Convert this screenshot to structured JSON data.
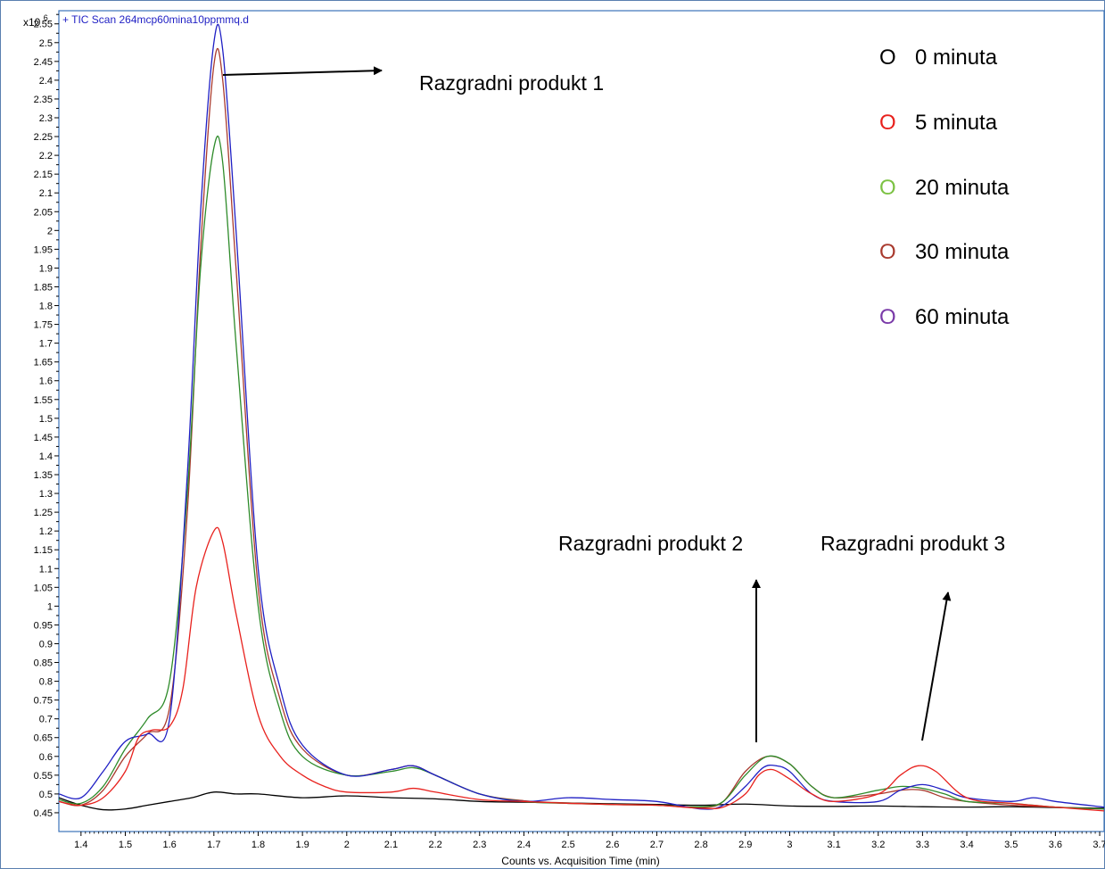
{
  "chart_data": {
    "type": "line",
    "title": "+ TIC Scan 264mcp60mina10ppmmq.d",
    "y_multiplier": "x10",
    "y_exponent": "6",
    "xlabel": "Counts vs. Acquisition Time (min)",
    "xlim": [
      1.35,
      3.71
    ],
    "ylim": [
      0.4,
      2.585
    ],
    "x_ticks": [
      "1.4",
      "1.5",
      "1.6",
      "1.7",
      "1.8",
      "1.9",
      "2",
      "2.1",
      "2.2",
      "2.3",
      "2.4",
      "2.5",
      "2.6",
      "2.7",
      "2.8",
      "2.9",
      "3",
      "3.1",
      "3.2",
      "3.3",
      "3.4",
      "3.5",
      "3.6",
      "3.7"
    ],
    "y_ticks": [
      "0.45",
      "0.5",
      "0.55",
      "0.6",
      "0.65",
      "0.7",
      "0.75",
      "0.8",
      "0.85",
      "0.9",
      "0.95",
      "1",
      "1.05",
      "1.1",
      "1.15",
      "1.2",
      "1.25",
      "1.3",
      "1.35",
      "1.4",
      "1.45",
      "1.5",
      "1.55",
      "1.6",
      "1.65",
      "1.7",
      "1.75",
      "1.8",
      "1.85",
      "1.9",
      "1.95",
      "2",
      "2.05",
      "2.1",
      "2.15",
      "2.2",
      "2.25",
      "2.3",
      "2.35",
      "2.4",
      "2.45",
      "2.5",
      "2.55"
    ],
    "series": [
      {
        "name": "0 minuta",
        "color": "#000000",
        "x": [
          1.35,
          1.4,
          1.45,
          1.5,
          1.55,
          1.6,
          1.65,
          1.7,
          1.75,
          1.8,
          1.9,
          2.0,
          2.1,
          2.2,
          2.3,
          2.4,
          2.5,
          2.6,
          2.7,
          2.8,
          2.9,
          3.0,
          3.1,
          3.2,
          3.3,
          3.4,
          3.5,
          3.6,
          3.71
        ],
        "y": [
          0.49,
          0.47,
          0.458,
          0.46,
          0.47,
          0.48,
          0.49,
          0.505,
          0.5,
          0.5,
          0.49,
          0.495,
          0.49,
          0.487,
          0.48,
          0.478,
          0.476,
          0.474,
          0.472,
          0.47,
          0.473,
          0.468,
          0.467,
          0.468,
          0.466,
          0.465,
          0.466,
          0.464,
          0.462
        ]
      },
      {
        "name": "5 minuta",
        "color": "#e8211d",
        "x": [
          1.35,
          1.4,
          1.45,
          1.5,
          1.53,
          1.56,
          1.6,
          1.63,
          1.66,
          1.7,
          1.72,
          1.75,
          1.8,
          1.85,
          1.9,
          1.95,
          2.0,
          2.1,
          2.15,
          2.2,
          2.3,
          2.4,
          2.5,
          2.6,
          2.7,
          2.8,
          2.85,
          2.9,
          2.93,
          2.96,
          3.0,
          3.05,
          3.1,
          3.2,
          3.25,
          3.29,
          3.33,
          3.4,
          3.5,
          3.6,
          3.71
        ],
        "y": [
          0.48,
          0.47,
          0.49,
          0.56,
          0.65,
          0.67,
          0.68,
          0.78,
          1.05,
          1.2,
          1.17,
          0.98,
          0.71,
          0.6,
          0.55,
          0.52,
          0.505,
          0.505,
          0.515,
          0.505,
          0.485,
          0.48,
          0.475,
          0.472,
          0.47,
          0.462,
          0.465,
          0.5,
          0.55,
          0.565,
          0.54,
          0.5,
          0.48,
          0.5,
          0.55,
          0.575,
          0.56,
          0.49,
          0.475,
          0.465,
          0.455
        ]
      },
      {
        "name": "20 minuta",
        "color": "#2e8b2a",
        "x": [
          1.35,
          1.4,
          1.45,
          1.5,
          1.55,
          1.6,
          1.64,
          1.67,
          1.7,
          1.72,
          1.75,
          1.8,
          1.85,
          1.9,
          2.0,
          2.1,
          2.15,
          2.2,
          2.3,
          2.4,
          2.5,
          2.6,
          2.7,
          2.8,
          2.85,
          2.9,
          2.95,
          3.0,
          3.05,
          3.1,
          3.2,
          3.25,
          3.3,
          3.35,
          3.4,
          3.5,
          3.6,
          3.71
        ],
        "y": [
          0.485,
          0.475,
          0.52,
          0.62,
          0.7,
          0.8,
          1.3,
          1.9,
          2.22,
          2.18,
          1.7,
          1.0,
          0.72,
          0.6,
          0.55,
          0.56,
          0.57,
          0.55,
          0.5,
          0.48,
          0.475,
          0.472,
          0.47,
          0.466,
          0.48,
          0.55,
          0.6,
          0.58,
          0.52,
          0.49,
          0.51,
          0.52,
          0.515,
          0.5,
          0.48,
          0.475,
          0.465,
          0.46
        ]
      },
      {
        "name": "30 minuta",
        "color": "#a93a2e",
        "x": [
          1.35,
          1.4,
          1.45,
          1.5,
          1.55,
          1.6,
          1.64,
          1.67,
          1.7,
          1.72,
          1.75,
          1.8,
          1.85,
          1.9,
          2.0,
          2.1,
          2.15,
          2.2,
          2.3,
          2.4,
          2.5,
          2.6,
          2.7,
          2.8,
          2.85,
          2.9,
          2.95,
          3.0,
          3.05,
          3.1,
          3.2,
          3.25,
          3.3,
          3.35,
          3.4,
          3.5,
          3.6,
          3.71
        ],
        "y": [
          0.48,
          0.47,
          0.51,
          0.6,
          0.66,
          0.73,
          1.25,
          1.95,
          2.44,
          2.4,
          1.9,
          1.05,
          0.75,
          0.62,
          0.55,
          0.565,
          0.575,
          0.55,
          0.5,
          0.482,
          0.476,
          0.472,
          0.47,
          0.464,
          0.48,
          0.56,
          0.6,
          0.58,
          0.52,
          0.49,
          0.5,
          0.51,
          0.51,
          0.49,
          0.48,
          0.47,
          0.465,
          0.46
        ]
      },
      {
        "name": "60 minuta",
        "color": "#1f1fc4",
        "x": [
          1.35,
          1.4,
          1.45,
          1.5,
          1.55,
          1.6,
          1.64,
          1.67,
          1.7,
          1.72,
          1.75,
          1.8,
          1.85,
          1.9,
          2.0,
          2.1,
          2.15,
          2.2,
          2.3,
          2.4,
          2.5,
          2.6,
          2.7,
          2.8,
          2.85,
          2.9,
          2.94,
          2.97,
          3.0,
          3.05,
          3.1,
          3.2,
          3.25,
          3.3,
          3.35,
          3.4,
          3.5,
          3.55,
          3.6,
          3.71
        ],
        "y": [
          0.5,
          0.49,
          0.56,
          0.64,
          0.66,
          0.7,
          1.35,
          2.05,
          2.5,
          2.48,
          2.0,
          1.1,
          0.78,
          0.63,
          0.55,
          0.565,
          0.575,
          0.55,
          0.5,
          0.48,
          0.49,
          0.485,
          0.48,
          0.46,
          0.47,
          0.52,
          0.57,
          0.575,
          0.56,
          0.5,
          0.48,
          0.48,
          0.51,
          0.525,
          0.51,
          0.49,
          0.48,
          0.49,
          0.48,
          0.465
        ]
      }
    ],
    "legend": {
      "placement": "top-right",
      "marker": "O",
      "items": [
        {
          "label": "0 minuta",
          "color": "#000000"
        },
        {
          "label": "5 minuta",
          "color": "#e8211d"
        },
        {
          "label": "20 minuta",
          "color": "#7cc243"
        },
        {
          "label": "30 minuta",
          "color": "#a93a2e"
        },
        {
          "label": "60 minuta",
          "color": "#7a3aa8"
        }
      ]
    },
    "annotations": [
      {
        "text": "Razgradni produkt 1"
      },
      {
        "text": "Razgradni produkt 2"
      },
      {
        "text": "Razgradni produkt 3"
      }
    ],
    "grid": false
  }
}
